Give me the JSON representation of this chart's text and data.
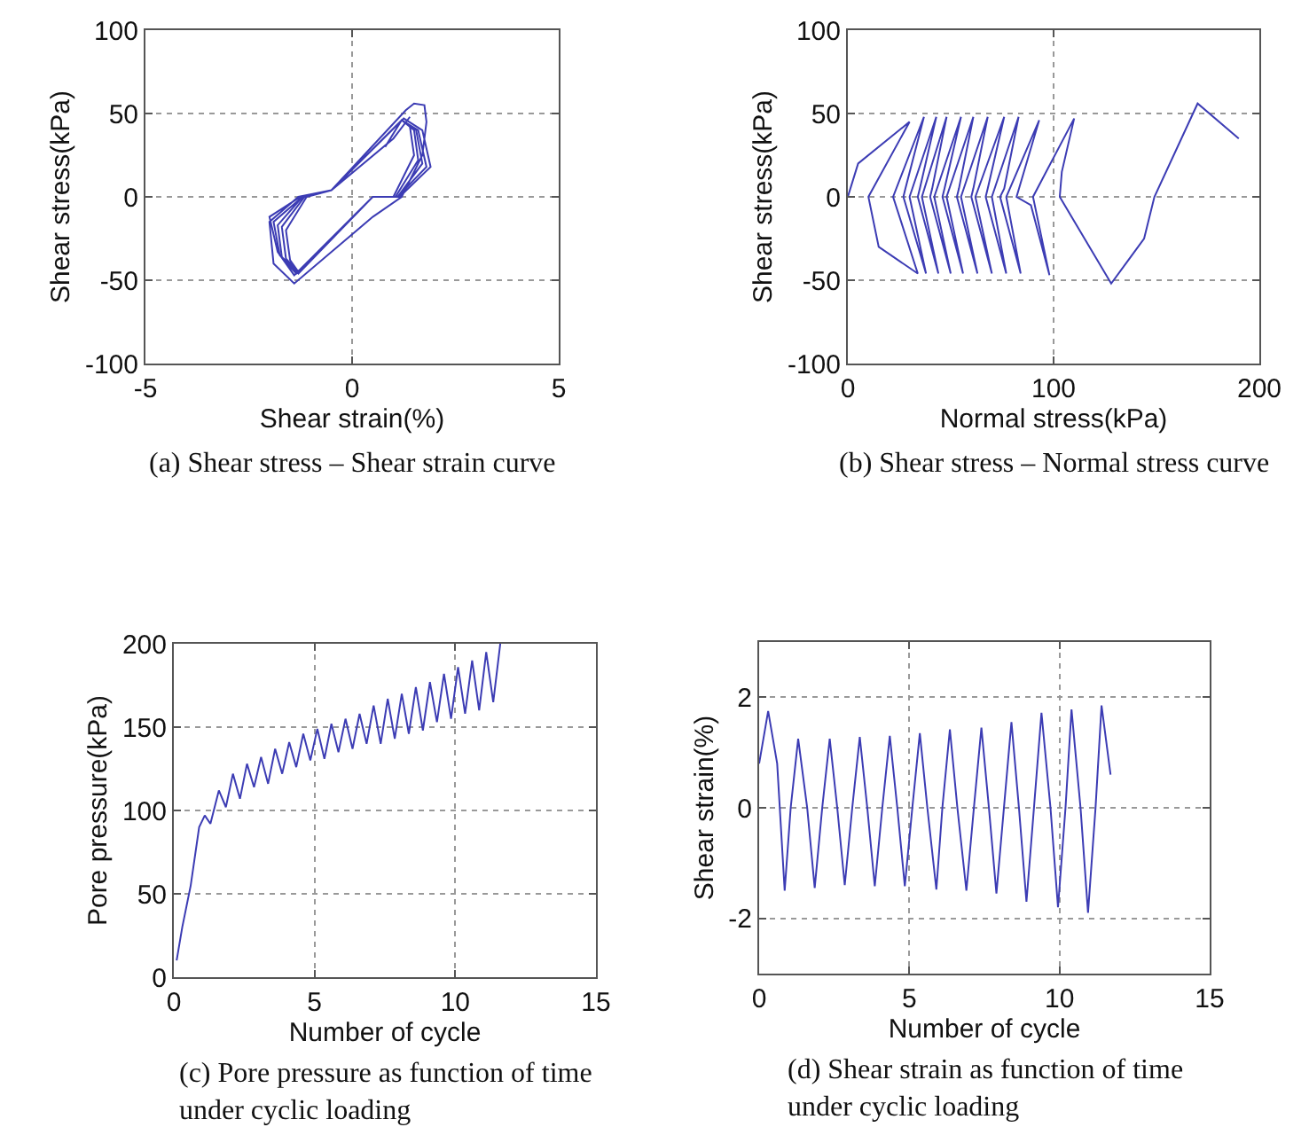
{
  "chart_data": [
    {
      "type": "line",
      "xlabel": "Shear strain(%)",
      "ylabel": "Shear stress(kPa)",
      "xlim": [
        -5,
        5
      ],
      "xticks": [
        -5,
        0,
        5
      ],
      "ylim": [
        -100,
        100
      ],
      "yticks": [
        -100,
        -50,
        0,
        50,
        100
      ],
      "grid": true,
      "annotations": [
        "(a) Shear stress – Shear strain curve"
      ],
      "series": [
        {
          "color": "#3c3cb4",
          "x": [
            0.8,
            1.2,
            1.4,
            1.5,
            1.0,
            0.5,
            -1.3,
            -1.5,
            -1.6,
            -1.1,
            -0.5,
            1.2,
            1.5,
            1.6,
            1.05,
            0.5,
            -1.3,
            -1.6,
            -1.7,
            -1.15,
            -0.5,
            1.2,
            1.55,
            1.7,
            1.1,
            0.5,
            -1.3,
            -1.7,
            -1.8,
            -1.2,
            -0.5,
            1.2,
            1.6,
            1.8,
            1.1,
            0.5,
            -1.35,
            -1.75,
            -1.9,
            -1.2,
            -0.5,
            1.25,
            1.7,
            1.9,
            1.15,
            0.5,
            -1.4,
            -1.8,
            -2.0,
            -1.25,
            -0.5,
            1.3,
            1.5,
            1.75,
            1.8,
            1.7,
            1.2,
            0.5,
            -1.4,
            -1.9,
            -2.0,
            -1.3,
            -0.5,
            1.0,
            1.4
          ],
          "values": [
            30,
            46,
            42,
            25,
            0,
            0,
            -45,
            -38,
            -20,
            0,
            4,
            46,
            40,
            22,
            0,
            0,
            -45,
            -37,
            -18,
            0,
            4,
            46,
            40,
            20,
            0,
            0,
            -46,
            -36,
            -17,
            0,
            4,
            46,
            40,
            18,
            0,
            0,
            -46,
            -35,
            -15,
            0,
            4,
            47,
            40,
            18,
            0,
            0,
            -47,
            -33,
            -12,
            0,
            4,
            52,
            56,
            55,
            45,
            25,
            0,
            -12,
            -52,
            -40,
            -15,
            0,
            4,
            35,
            48
          ]
        }
      ]
    },
    {
      "type": "line",
      "xlabel": "Normal stress(kPa)",
      "ylabel": "Shear stress(kPa)",
      "xlim": [
        0,
        200
      ],
      "xticks": [
        0,
        100,
        200
      ],
      "ylim": [
        -100,
        100
      ],
      "yticks": [
        -100,
        -50,
        0,
        50,
        100
      ],
      "grid": true,
      "annotations": [
        "(b) Shear stress – Normal stress curve"
      ],
      "series": [
        {
          "color": "#3c3cb4",
          "x": [
            190,
            170,
            149,
            144,
            128,
            103,
            104,
            110,
            90,
            98,
            89,
            82,
            93,
            77,
            84,
            74,
            76,
            83,
            70,
            77,
            67,
            68,
            76,
            62,
            70,
            60,
            61,
            68,
            55,
            63,
            53,
            54,
            61,
            48,
            56,
            46,
            47,
            55,
            42,
            50,
            40,
            41,
            48,
            36,
            44,
            34,
            35,
            43,
            30,
            38,
            27,
            28,
            37,
            22,
            34,
            15,
            10,
            30,
            5,
            0
          ],
          "values": [
            35,
            56,
            0,
            -25,
            -52,
            0,
            15,
            47,
            0,
            -47,
            -5,
            0,
            46,
            0,
            -46,
            0,
            5,
            48,
            0,
            -46,
            0,
            5,
            48,
            0,
            -46,
            0,
            5,
            48,
            0,
            -46,
            0,
            5,
            48,
            0,
            -46,
            0,
            5,
            48,
            0,
            -46,
            0,
            5,
            48,
            0,
            -46,
            0,
            5,
            48,
            0,
            -46,
            0,
            5,
            48,
            0,
            -46,
            -30,
            0,
            45,
            20,
            0
          ]
        }
      ]
    },
    {
      "type": "line",
      "xlabel": "Number of cycle",
      "ylabel": "Pore pressure(kPa)",
      "xlim": [
        0,
        15
      ],
      "xticks": [
        0,
        5,
        10,
        15
      ],
      "ylim": [
        0,
        200
      ],
      "yticks": [
        0,
        50,
        100,
        150,
        200
      ],
      "grid": true,
      "annotations": [
        "(c) Pore pressure as function of time\nunder cyclic loading"
      ],
      "series": [
        {
          "color": "#3c3cb4",
          "x": [
            0.1,
            0.3,
            0.6,
            0.9,
            1.1,
            1.3,
            1.6,
            1.85,
            2.1,
            2.35,
            2.6,
            2.85,
            3.1,
            3.35,
            3.6,
            3.85,
            4.1,
            4.35,
            4.6,
            4.85,
            5.1,
            5.35,
            5.6,
            5.85,
            6.1,
            6.35,
            6.6,
            6.85,
            7.1,
            7.35,
            7.6,
            7.85,
            8.1,
            8.35,
            8.6,
            8.85,
            9.1,
            9.35,
            9.6,
            9.85,
            10.1,
            10.35,
            10.6,
            10.85,
            11.1,
            11.35,
            11.6
          ],
          "values": [
            10,
            30,
            55,
            90,
            97,
            92,
            112,
            102,
            122,
            107,
            128,
            114,
            132,
            116,
            137,
            122,
            141,
            126,
            146,
            130,
            149,
            131,
            152,
            135,
            155,
            137,
            158,
            140,
            163,
            140,
            167,
            143,
            170,
            146,
            174,
            148,
            177,
            153,
            182,
            155,
            186,
            158,
            190,
            160,
            195,
            165,
            200
          ]
        }
      ]
    },
    {
      "type": "line",
      "xlabel": "Number of cycle",
      "ylabel": "Shear strain(%)",
      "xlim": [
        0,
        15
      ],
      "xticks": [
        0,
        5,
        10,
        15
      ],
      "ylim": [
        -3,
        3
      ],
      "yticks": [
        -2,
        0,
        2
      ],
      "grid": true,
      "annotations": [
        "(d) Shear strain as function of time\nunder cyclic loading"
      ],
      "series": [
        {
          "color": "#3c3cb4",
          "x": [
            0,
            0.3,
            0.6,
            0.85,
            1.05,
            1.3,
            1.6,
            1.85,
            2.1,
            2.35,
            2.6,
            2.85,
            3.1,
            3.35,
            3.6,
            3.85,
            4.1,
            4.35,
            4.6,
            4.85,
            5.1,
            5.35,
            5.6,
            5.9,
            6.1,
            6.35,
            6.6,
            6.9,
            7.15,
            7.4,
            7.65,
            7.9,
            8.15,
            8.4,
            8.65,
            8.9,
            9.15,
            9.4,
            9.7,
            9.95,
            10.2,
            10.4,
            10.7,
            10.95,
            11.2,
            11.4,
            11.7
          ],
          "values": [
            0.8,
            1.75,
            0.8,
            -1.5,
            0,
            1.25,
            0,
            -1.45,
            0,
            1.25,
            0,
            -1.4,
            0,
            1.28,
            0,
            -1.42,
            0,
            1.3,
            0,
            -1.42,
            0,
            1.35,
            0,
            -1.48,
            0,
            1.42,
            0,
            -1.5,
            0,
            1.45,
            0,
            -1.55,
            0,
            1.55,
            0,
            -1.7,
            0,
            1.72,
            0,
            -1.8,
            0,
            1.78,
            0,
            -1.9,
            0,
            1.85,
            0.6
          ]
        }
      ]
    }
  ]
}
